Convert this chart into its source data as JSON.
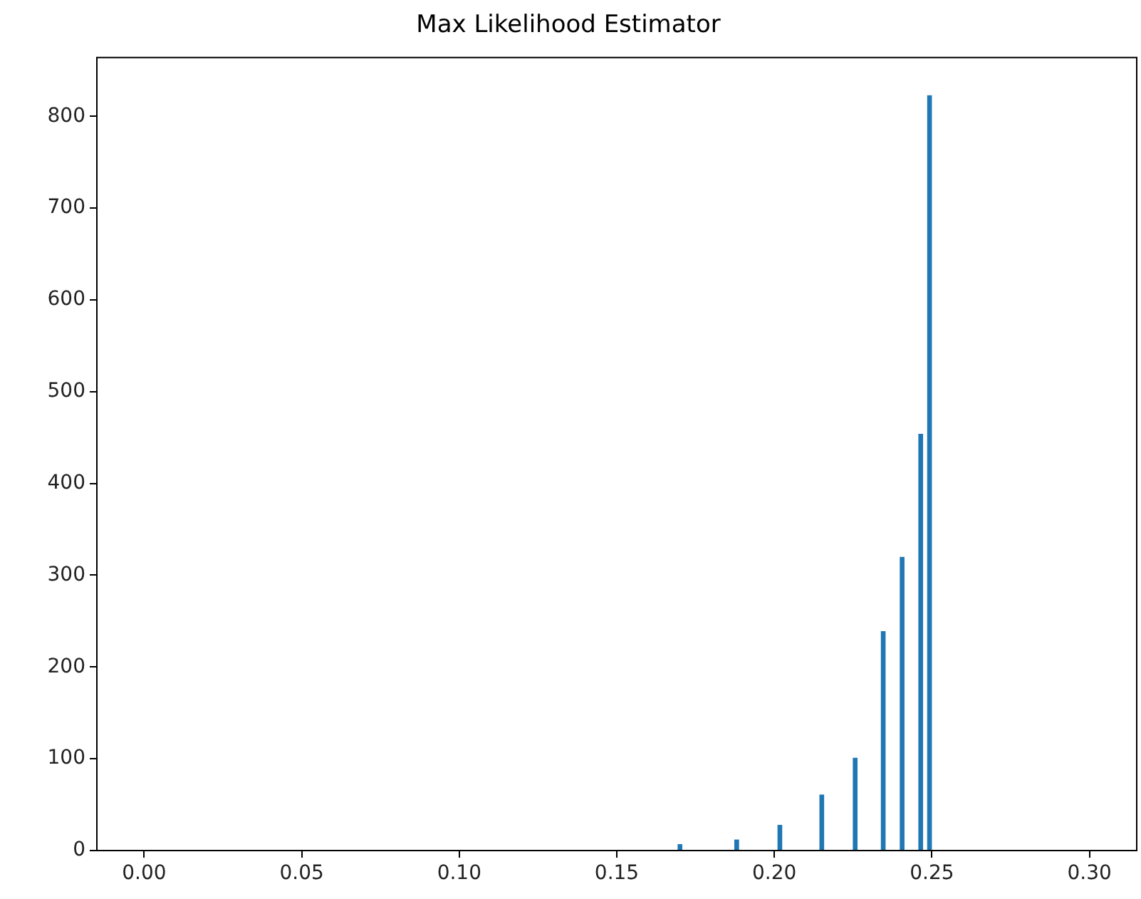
{
  "chart_data": {
    "type": "histogram",
    "title": "Max Likelihood Estimator",
    "bins": [
      0.1693,
      0.1708,
      0.1873,
      0.1888,
      0.201,
      0.2025,
      0.2143,
      0.2158,
      0.2249,
      0.2264,
      0.2338,
      0.2353,
      0.2398,
      0.2413,
      0.2457,
      0.2472,
      0.2485,
      0.25
    ],
    "values": [
      7,
      0,
      12,
      0,
      28,
      0,
      61,
      0,
      101,
      0,
      239,
      0,
      320,
      0,
      454,
      0,
      823
    ],
    "color": "#1f77b4",
    "xlim": [
      -0.015,
      0.315
    ],
    "xticks": [
      {
        "value": 0,
        "label": "0.00"
      },
      {
        "value": 0.05,
        "label": "0.05"
      },
      {
        "value": 0.1,
        "label": "0.10"
      },
      {
        "value": 0.15,
        "label": "0.15"
      },
      {
        "value": 0.2,
        "label": "0.20"
      },
      {
        "value": 0.25,
        "label": "0.25"
      },
      {
        "value": 0.3,
        "label": "0.30"
      }
    ],
    "ylim": [
      0,
      864
    ],
    "yticks": [
      0,
      100,
      200,
      300,
      400,
      500,
      600,
      700,
      800
    ],
    "grid": false,
    "legend": false
  }
}
